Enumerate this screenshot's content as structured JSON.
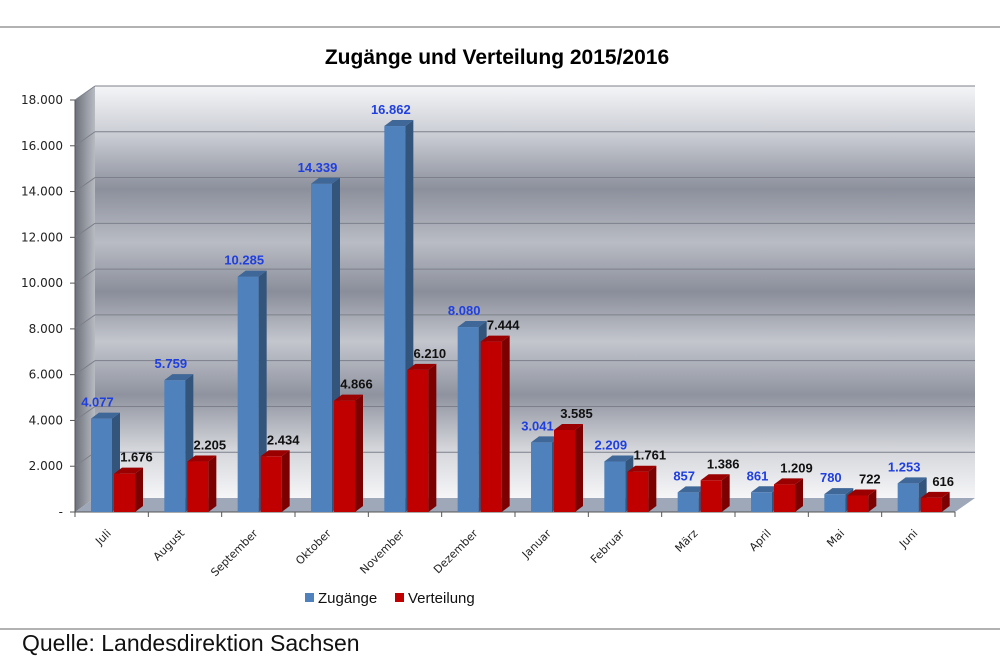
{
  "chart_data": {
    "type": "bar",
    "title": "Zugänge und Verteilung 2015/2016",
    "xlabel": "",
    "ylabel": "",
    "ylim": [
      0,
      18000
    ],
    "yticks": [
      0,
      2000,
      4000,
      6000,
      8000,
      10000,
      12000,
      14000,
      16000,
      18000
    ],
    "ytick_labels": [
      "-",
      "2.000",
      "4.000",
      "6.000",
      "8.000",
      "10.000",
      "12.000",
      "14.000",
      "16.000",
      "18.000"
    ],
    "grid": true,
    "legend": "bottom",
    "style": "3d-clustered-column",
    "categories": [
      "Juli",
      "August",
      "September",
      "Oktober",
      "November",
      "Dezember",
      "Januar",
      "Februar",
      "März",
      "April",
      "Mai",
      "Juni"
    ],
    "series": [
      {
        "name": "Zugänge",
        "color": "#4f81bd",
        "label_color": "#1f3fe0",
        "values": [
          4077,
          5759,
          10285,
          14339,
          16862,
          8080,
          3041,
          2209,
          857,
          861,
          780,
          1253
        ],
        "labels": [
          "4.077",
          "5.759",
          "10.285",
          "14.339",
          "16.862",
          "8.080",
          "3.041",
          "2.209",
          "857",
          "861",
          "780",
          "1.253"
        ]
      },
      {
        "name": "Verteilung",
        "color": "#c00000",
        "label_color": "#111111",
        "values": [
          1676,
          2205,
          2434,
          4866,
          6210,
          7444,
          3585,
          1761,
          1386,
          1209,
          722,
          616
        ],
        "labels": [
          "1.676",
          "2.205",
          "2.434",
          "4.866",
          "6.210",
          "7.444",
          "3.585",
          "1.761",
          "1.386",
          "1.209",
          "722",
          "616"
        ]
      }
    ]
  },
  "source": "Quelle: Landesdirektion Sachsen"
}
